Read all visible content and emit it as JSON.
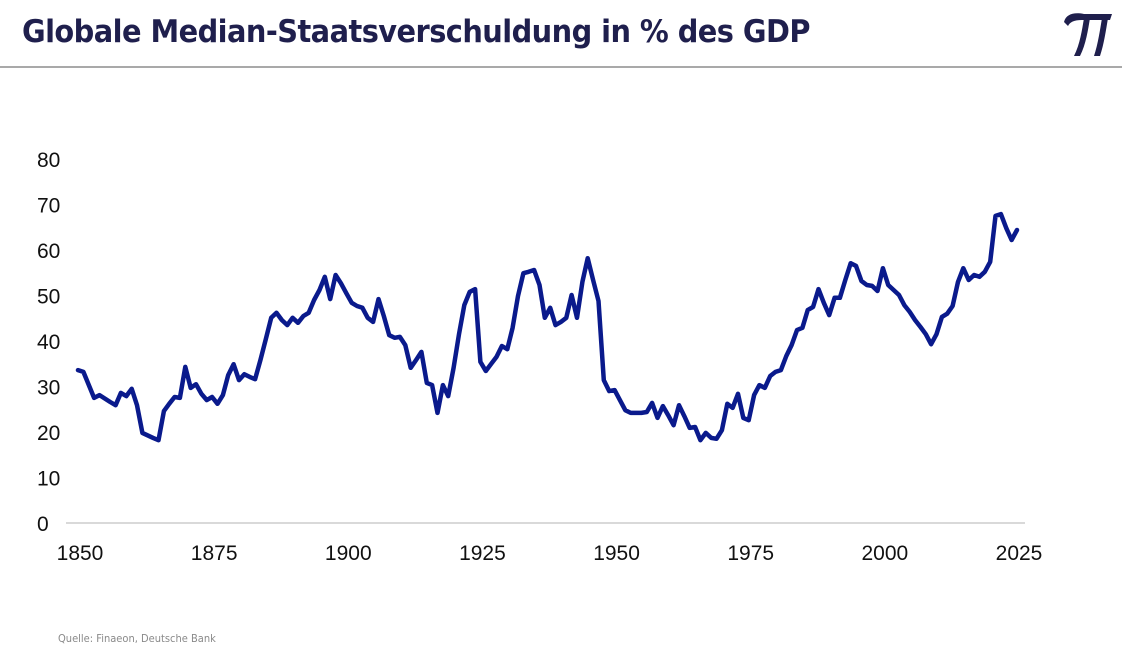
{
  "header": {
    "title": "Globale Median-Staatsverschuldung in % des GDP",
    "logo_icon": "pi-symbol-icon",
    "logo_glyph": "π",
    "brand_color": "#1f1f4d"
  },
  "footer": {
    "source": "Quelle: Finaeon, Deutsche Bank"
  },
  "chart_data": {
    "type": "line",
    "title": "Globale Median-Staatsverschuldung in % des GDP",
    "xlabel": "",
    "ylabel": "",
    "xlim": [
      1850,
      2025
    ],
    "ylim": [
      0,
      80
    ],
    "x_ticks": [
      1850,
      1875,
      1900,
      1925,
      1950,
      1975,
      2000,
      2025
    ],
    "x_tick_labels": [
      "1850",
      "1875",
      "1900",
      "1925",
      "1950",
      "1975",
      "2000",
      "2025"
    ],
    "y_ticks": [
      0,
      10,
      20,
      30,
      40,
      50,
      60,
      70,
      80
    ],
    "y_tick_labels": [
      "0",
      "10",
      "20",
      "30",
      "40",
      "50",
      "60",
      "70",
      "80"
    ],
    "grid": false,
    "baseline": true,
    "legend": "none",
    "line_color": "#0a1a8c",
    "baseline_color": "#d9d9d9",
    "series": [
      {
        "name": "Median-Staatsverschuldung (% des GDP)",
        "x": [
          1850,
          1851,
          1853,
          1854,
          1856,
          1857,
          1858,
          1859,
          1860,
          1861,
          1862,
          1864,
          1865,
          1866,
          1867,
          1868,
          1869,
          1870,
          1871,
          1872,
          1873,
          1874,
          1875,
          1876,
          1877,
          1878,
          1879,
          1880,
          1881,
          1882,
          1883,
          1884,
          1885,
          1886,
          1887,
          1888,
          1889,
          1890,
          1891,
          1892,
          1893,
          1894,
          1895,
          1896,
          1897,
          1898,
          1899,
          1900,
          1901,
          1902,
          1903,
          1904,
          1905,
          1906,
          1907,
          1908,
          1909,
          1910,
          1911,
          1912,
          1913,
          1914,
          1915,
          1916,
          1917,
          1918,
          1919,
          1920,
          1921,
          1922,
          1923,
          1924,
          1925,
          1926,
          1927,
          1928,
          1929,
          1930,
          1931,
          1932,
          1933,
          1934,
          1935,
          1936,
          1937,
          1938,
          1939,
          1940,
          1941,
          1942,
          1943,
          1944,
          1945,
          1946,
          1947,
          1948,
          1949,
          1950,
          1951,
          1952,
          1953,
          1954,
          1955,
          1956,
          1957,
          1958,
          1959,
          1960,
          1961,
          1962,
          1963,
          1964,
          1965,
          1966,
          1967,
          1968,
          1969,
          1970,
          1971,
          1972,
          1973,
          1974,
          1975,
          1976,
          1977,
          1978,
          1979,
          1980,
          1981,
          1982,
          1983,
          1984,
          1985,
          1986,
          1987,
          1988,
          1989,
          1990,
          1991,
          1992,
          1993,
          1994,
          1995,
          1996,
          1997,
          1998,
          1999,
          2000,
          2001,
          2002,
          2003,
          2004,
          2005,
          2006,
          2007,
          2008,
          2009,
          2010,
          2011,
          2012,
          2013,
          2014,
          2015,
          2016,
          2017,
          2018,
          2019,
          2020,
          2021,
          2022,
          2023,
          2024,
          2025
        ],
        "values": [
          33.6,
          33.2,
          27.5,
          28.1,
          26.6,
          25.9,
          28.6,
          27.9,
          29.5,
          25.9,
          19.8,
          18.7,
          18.2,
          24.6,
          26.2,
          27.7,
          27.5,
          34.3,
          29.7,
          30.5,
          28.4,
          27.0,
          27.7,
          26.2,
          28.1,
          32.5,
          34.9,
          31.4,
          32.7,
          32.1,
          31.6,
          35.8,
          40.4,
          45.1,
          46.2,
          44.6,
          43.5,
          45.1,
          44.0,
          45.5,
          46.2,
          49.0,
          51.2,
          54.1,
          49.2,
          54.5,
          52.7,
          50.5,
          48.4,
          47.7,
          47.3,
          45.1,
          44.2,
          49.2,
          45.5,
          41.3,
          40.7,
          40.9,
          39.1,
          34.1,
          35.8,
          37.6,
          30.8,
          30.3,
          24.2,
          30.3,
          27.9,
          34.1,
          41.5,
          47.9,
          50.8,
          51.4,
          35.4,
          33.4,
          35.0,
          36.5,
          38.9,
          38.2,
          42.9,
          49.9,
          54.9,
          55.2,
          55.6,
          52.3,
          45.1,
          47.3,
          43.5,
          44.2,
          45.1,
          50.1,
          45.1,
          53.0,
          58.2,
          53.4,
          48.8,
          31.4,
          29.0,
          29.2,
          27.0,
          24.8,
          24.2,
          24.2,
          24.2,
          24.4,
          26.4,
          23.1,
          25.7,
          23.7,
          21.5,
          25.9,
          23.5,
          20.9,
          21.1,
          18.2,
          19.8,
          18.7,
          18.5,
          20.4,
          26.2,
          25.3,
          28.4,
          23.1,
          22.6,
          28.1,
          30.3,
          29.7,
          32.3,
          33.2,
          33.6,
          36.7,
          39.1,
          42.4,
          42.9,
          46.8,
          47.5,
          51.4,
          48.4,
          45.7,
          49.5,
          49.5,
          53.4,
          57.1,
          56.5,
          53.2,
          52.3,
          52.1,
          51.0,
          56.0,
          52.3,
          51.2,
          50.1,
          47.9,
          46.4,
          44.6,
          43.1,
          41.5,
          39.3,
          41.5,
          45.3,
          46.0,
          47.7,
          53.0,
          56.0,
          53.4,
          54.5,
          54.1,
          55.2,
          57.4,
          67.5,
          67.9,
          64.8,
          62.2,
          64.4
        ]
      }
    ]
  }
}
